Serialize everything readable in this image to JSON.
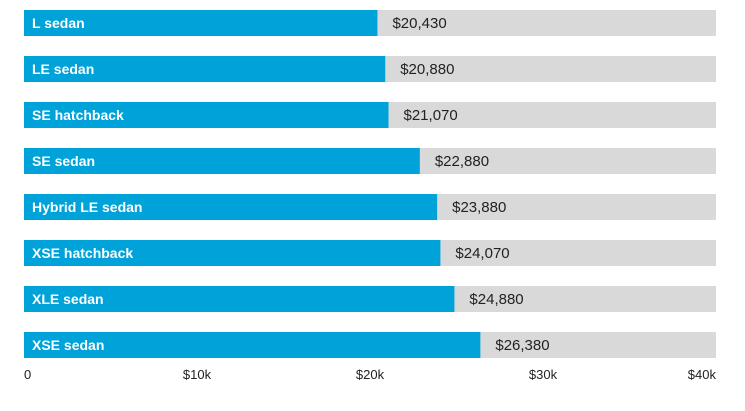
{
  "colors": {
    "bar": "#00a3d9",
    "track": "#d9d9d9",
    "bar_text": "#ffffff",
    "value_text": "#222222",
    "tick_text": "#222222"
  },
  "chart_data": {
    "type": "bar",
    "orientation": "horizontal",
    "categories": [
      "L sedan",
      "LE sedan",
      "SE hatchback",
      "SE sedan",
      "Hybrid LE sedan",
      "XSE hatchback",
      "XLE sedan",
      "XSE sedan"
    ],
    "values": [
      20430,
      20880,
      21070,
      22880,
      23880,
      24070,
      24880,
      26380
    ],
    "value_labels": [
      "$20,430",
      "$20,880",
      "$21,070",
      "$22,880",
      "$23,880",
      "$24,070",
      "$24,880",
      "$26,380"
    ],
    "xlim": [
      0,
      40000
    ],
    "x_ticks": [
      0,
      10000,
      20000,
      30000,
      40000
    ],
    "x_tick_labels": [
      "0",
      "$10k",
      "$20k",
      "$30k",
      "$40k"
    ],
    "title": "",
    "xlabel": "",
    "ylabel": "",
    "grid": false,
    "legend": "none"
  }
}
